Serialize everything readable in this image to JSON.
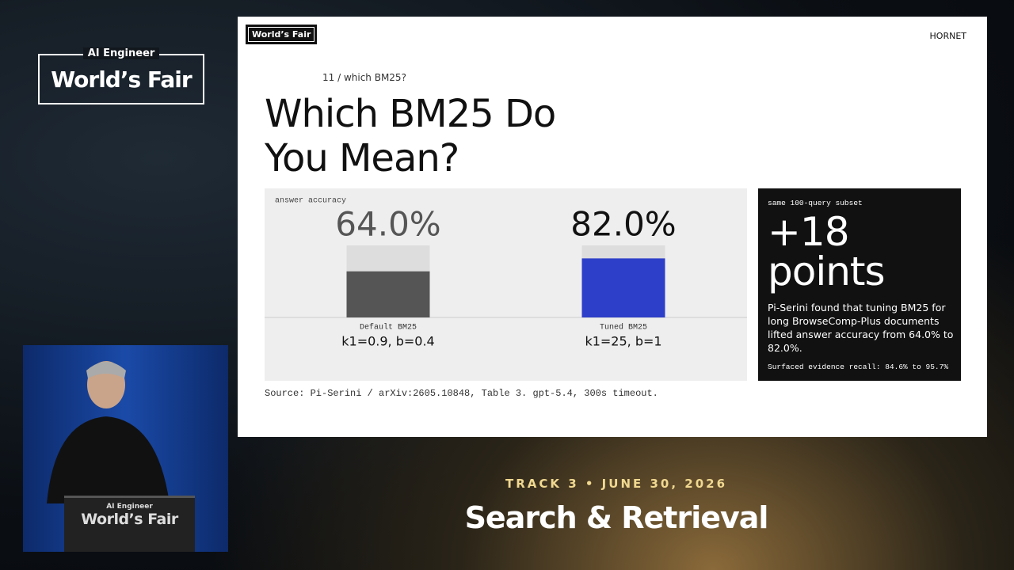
{
  "event_logo": {
    "top": "AI Engineer",
    "main": "World’s Fair"
  },
  "slide": {
    "logo": "World’s Fair",
    "brand": "HORNET",
    "kicker": "11 / which BM25?",
    "title": "Which BM25 Do You Mean?",
    "source": "Source: Pi-Serini / arXiv:2605.10848, Table 3. gpt-5.4, 300s timeout.",
    "callout": {
      "label": "same 100-query subset",
      "headline": "+18 points",
      "body": "Pi-Serini found that tuning BM25 for long BrowseComp-Plus documents lifted answer accuracy from 64.0% to 82.0%.",
      "footnote": "Surfaced evidence recall: 84.6% to 95.7%"
    }
  },
  "chart_data": {
    "type": "bar",
    "ylabel": "answer accuracy",
    "categories": [
      "Default BM25",
      "Tuned BM25"
    ],
    "sublabels": [
      "k1=0.9, b=0.4",
      "k1=25, b=1"
    ],
    "values": [
      64.0,
      82.0
    ],
    "value_labels": [
      "64.0%",
      "82.0%"
    ],
    "colors": [
      "#555555",
      "#2d3ec9"
    ],
    "ylim": [
      0,
      100
    ]
  },
  "lower_third": {
    "track": "TRACK 3 • JUNE 30, 2026",
    "title": "Search & Retrieval"
  },
  "podium": {
    "top": "AI Engineer",
    "main": "World’s Fair"
  }
}
